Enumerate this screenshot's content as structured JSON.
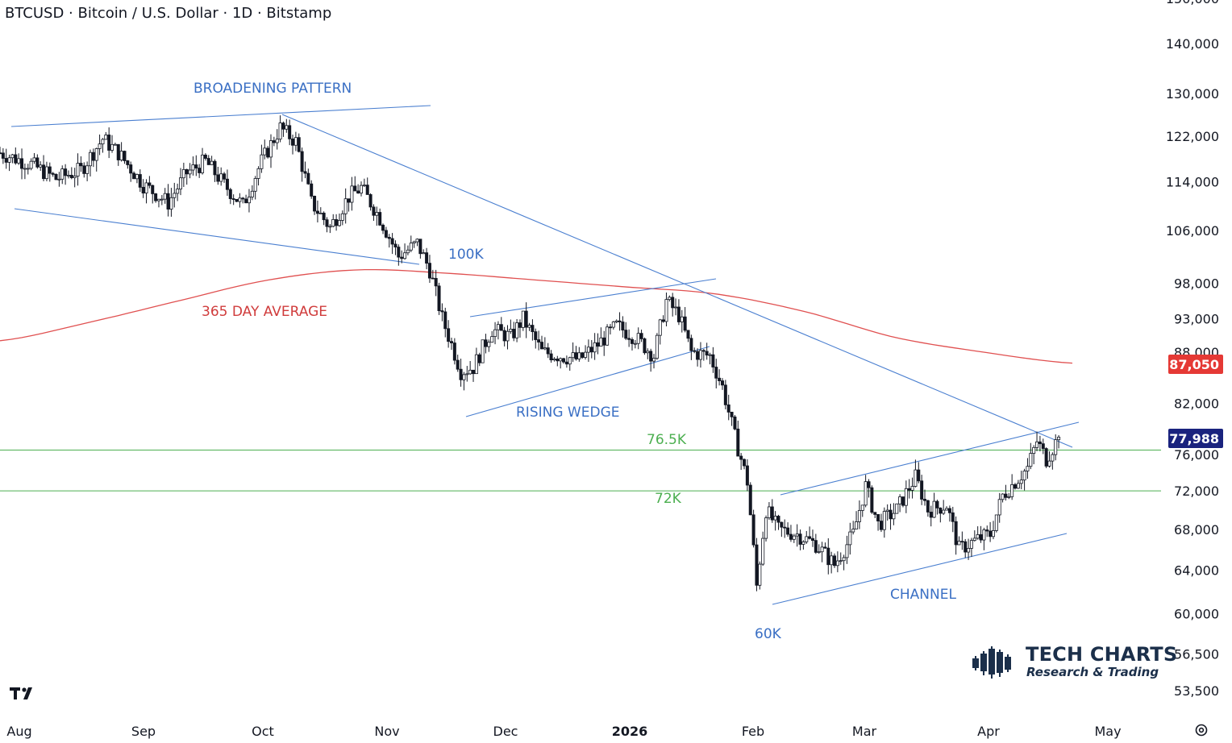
{
  "title": "BTCUSD · Bitcoin / U.S. Dollar · 1D · Bitstamp",
  "chart_data": {
    "type": "candlestick",
    "symbol": "BTCUSD",
    "interval": "1D",
    "exchange": "Bitstamp",
    "x_ticks": [
      "Aug",
      "Sep",
      "Oct",
      "Nov",
      "Dec",
      "2026",
      "Feb",
      "Mar",
      "Apr",
      "May"
    ],
    "y_ticks": [
      "140,000",
      "130,000",
      "122,000",
      "114,000",
      "106,000",
      "98,000",
      "93,000",
      "88,000",
      "82,000",
      "76,000",
      "72,000",
      "68,000",
      "64,000",
      "60,000",
      "56,500",
      "53,500"
    ],
    "y_scale": "log",
    "price_labels": [
      {
        "value": "87,050",
        "series": "365 DAY AVERAGE",
        "color": "#e53935"
      },
      {
        "value": "77,988",
        "series": "last price",
        "color": "#1a237e"
      }
    ],
    "horizontal_levels": [
      {
        "label": "76.5K",
        "value": 76500,
        "color": "#4caf50"
      },
      {
        "label": "72K",
        "value": 72000,
        "color": "#4caf50"
      }
    ],
    "annotations": [
      {
        "text": "BROADENING PATTERN",
        "color": "#3a6fc4"
      },
      {
        "text": "100K",
        "color": "#3a6fc4"
      },
      {
        "text": "365 DAY AVERAGE",
        "color": "#d03c3c"
      },
      {
        "text": "RISING WEDGE",
        "color": "#3a6fc4"
      },
      {
        "text": "CHANNEL",
        "color": "#3a6fc4"
      },
      {
        "text": "60K",
        "color": "#3a6fc4"
      }
    ],
    "ma_365_values": [
      90000,
      92500,
      95500,
      98500,
      100000,
      99500,
      98500,
      97500,
      96500,
      94000,
      90500,
      88500,
      87050
    ],
    "series_anchors": [
      [
        0,
        119000
      ],
      [
        10,
        117000
      ],
      [
        18,
        114500
      ],
      [
        26,
        116000
      ],
      [
        33,
        121500
      ],
      [
        38,
        119000
      ],
      [
        46,
        113500
      ],
      [
        54,
        110500
      ],
      [
        60,
        115500
      ],
      [
        66,
        117500
      ],
      [
        72,
        113500
      ],
      [
        78,
        110000
      ],
      [
        84,
        117500
      ],
      [
        90,
        123500
      ],
      [
        95,
        121000
      ],
      [
        100,
        110500
      ],
      [
        106,
        106500
      ],
      [
        112,
        111500
      ],
      [
        116,
        113000
      ],
      [
        122,
        108000
      ],
      [
        128,
        102000
      ],
      [
        134,
        104000
      ],
      [
        138,
        100000
      ],
      [
        142,
        93000
      ],
      [
        148,
        86000
      ],
      [
        152,
        86500
      ],
      [
        158,
        91500
      ],
      [
        164,
        90500
      ],
      [
        168,
        93000
      ],
      [
        174,
        88500
      ],
      [
        180,
        88000
      ],
      [
        186,
        87500
      ],
      [
        192,
        89500
      ],
      [
        198,
        92000
      ],
      [
        204,
        90500
      ],
      [
        210,
        88000
      ],
      [
        214,
        95500
      ],
      [
        218,
        93500
      ],
      [
        222,
        88500
      ],
      [
        228,
        88000
      ],
      [
        232,
        84000
      ],
      [
        236,
        78000
      ],
      [
        240,
        73000
      ],
      [
        243,
        62500
      ],
      [
        246,
        70000
      ],
      [
        250,
        68000
      ],
      [
        256,
        67500
      ],
      [
        262,
        66500
      ],
      [
        268,
        64500
      ],
      [
        274,
        67500
      ],
      [
        278,
        72500
      ],
      [
        282,
        68500
      ],
      [
        288,
        70000
      ],
      [
        294,
        73500
      ],
      [
        298,
        70000
      ],
      [
        304,
        70500
      ],
      [
        308,
        66000
      ],
      [
        314,
        67000
      ],
      [
        318,
        67500
      ],
      [
        322,
        71500
      ],
      [
        326,
        73000
      ],
      [
        330,
        74500
      ],
      [
        333,
        77500
      ],
      [
        336,
        75500
      ],
      [
        340,
        77988
      ]
    ]
  },
  "branding": {
    "name": "TECH CHARTS",
    "tagline": "Research & Trading",
    "icon": "candlestick-logo-icon",
    "platform_icon": "tradingview-logo-icon",
    "settings_icon": "settings-gear-icon"
  }
}
